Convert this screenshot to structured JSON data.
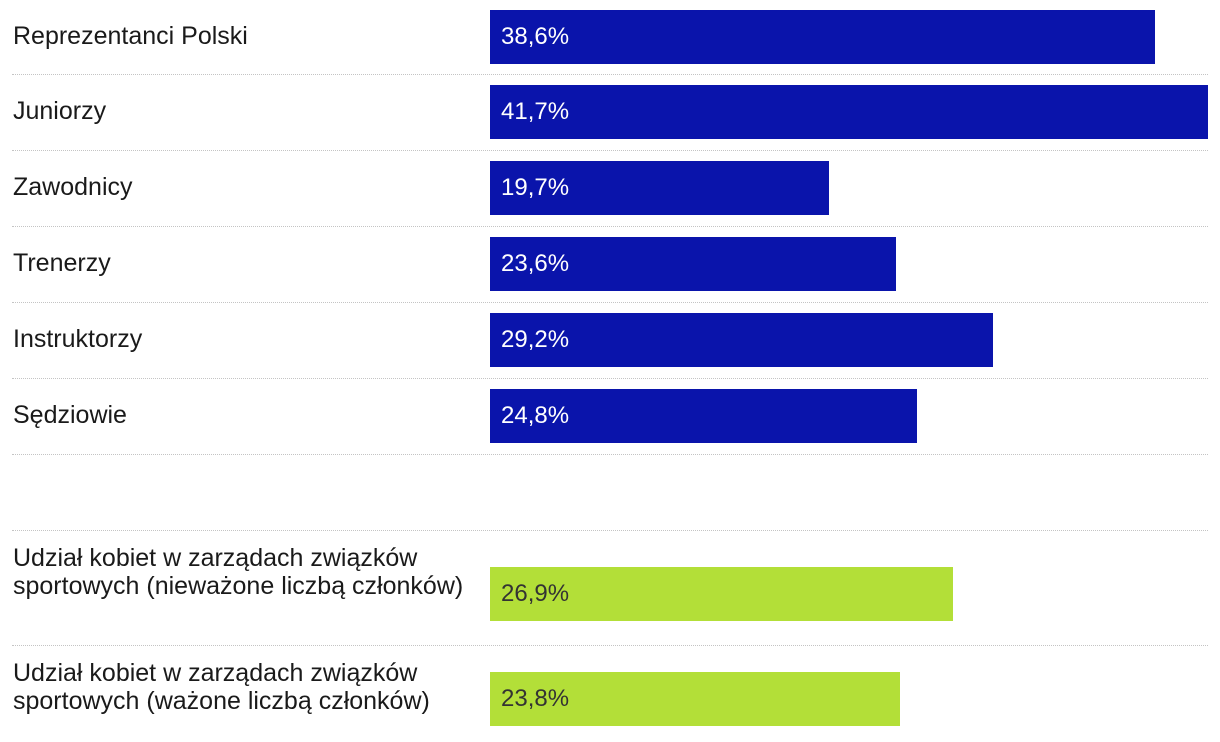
{
  "chart_data": {
    "type": "bar",
    "orientation": "horizontal",
    "title": "",
    "xlabel": "",
    "ylabel": "",
    "xlim": [
      0,
      41.7
    ],
    "grid": false,
    "legend": "none",
    "series": [
      {
        "name": "main",
        "color": "#0a14ab",
        "categories": [
          "Reprezentanci Polski",
          "Juniorzy",
          "Zawodnicy",
          "Trenerzy",
          "Instruktorzy",
          "Sędziowie"
        ],
        "values": [
          38.6,
          41.7,
          19.7,
          23.6,
          29.2,
          24.8
        ],
        "labels": [
          "38,6%",
          "41,7%",
          "19,7%",
          "23,6%",
          "29,2%",
          "24,8%"
        ]
      },
      {
        "name": "boards",
        "color": "#b3df38",
        "categories": [
          "Udział kobiet w zarządach związków sportowych (nieważone liczbą członków)",
          "Udział kobiet w zarządach związków sportowych (ważone liczbą członków)"
        ],
        "values": [
          26.9,
          23.8
        ],
        "labels": [
          "26,9%",
          "23,8%"
        ]
      }
    ]
  }
}
